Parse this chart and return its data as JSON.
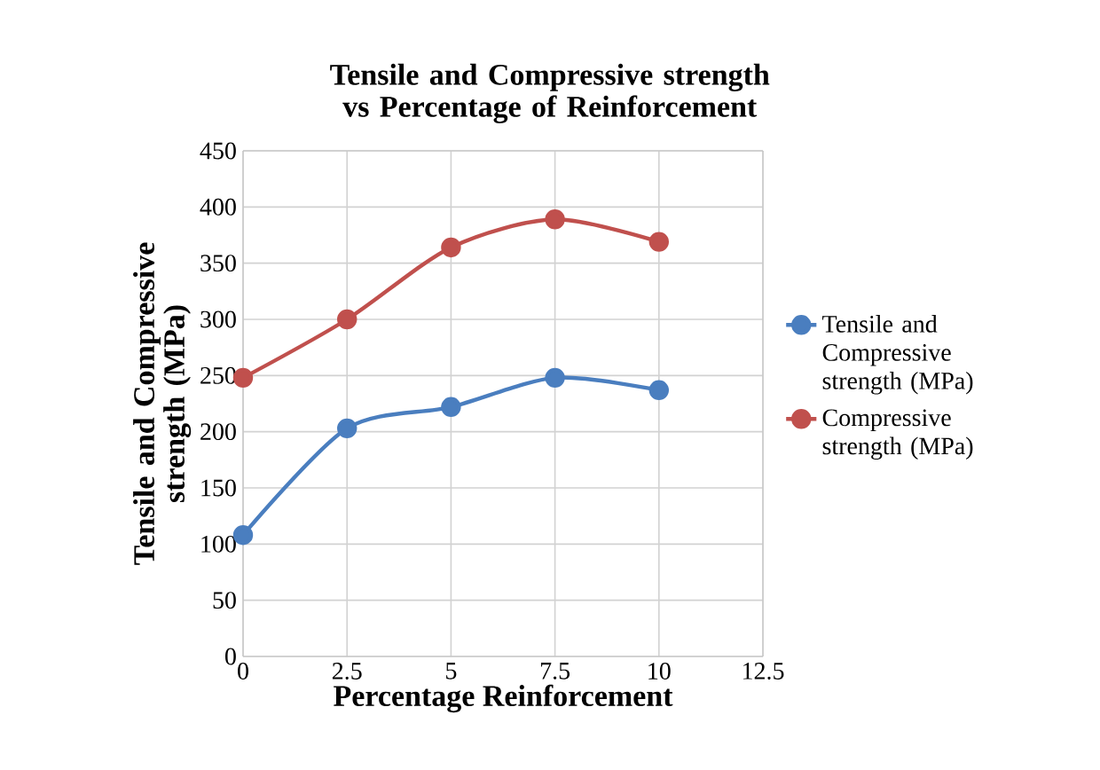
{
  "chart_data": {
    "type": "line",
    "title": "Tensile and Compressive strength vs Percentage of Reinforcement",
    "xlabel": "Percentage Reinforcement",
    "ylabel": "Tensile and Compressive strength (MPa)",
    "x": [
      0,
      2.5,
      5,
      7.5,
      10
    ],
    "series": [
      {
        "name": "Tensile and Compressive strength (MPa)",
        "color": "#4a7ebf",
        "values": [
          108,
          203,
          222,
          248,
          237
        ]
      },
      {
        "name": "Compressive strength (MPa)",
        "color": "#c0504d",
        "values": [
          248,
          300,
          364,
          389,
          369
        ]
      }
    ],
    "xlim": [
      0,
      12.5
    ],
    "xticks": [
      0,
      2.5,
      5,
      7.5,
      10,
      12.5
    ],
    "ylim": [
      0,
      450
    ],
    "yticks": [
      0,
      50,
      100,
      150,
      200,
      250,
      300,
      350,
      400,
      450
    ],
    "grid": true,
    "legend": "right",
    "marker": "circle",
    "line_style": "solid"
  }
}
